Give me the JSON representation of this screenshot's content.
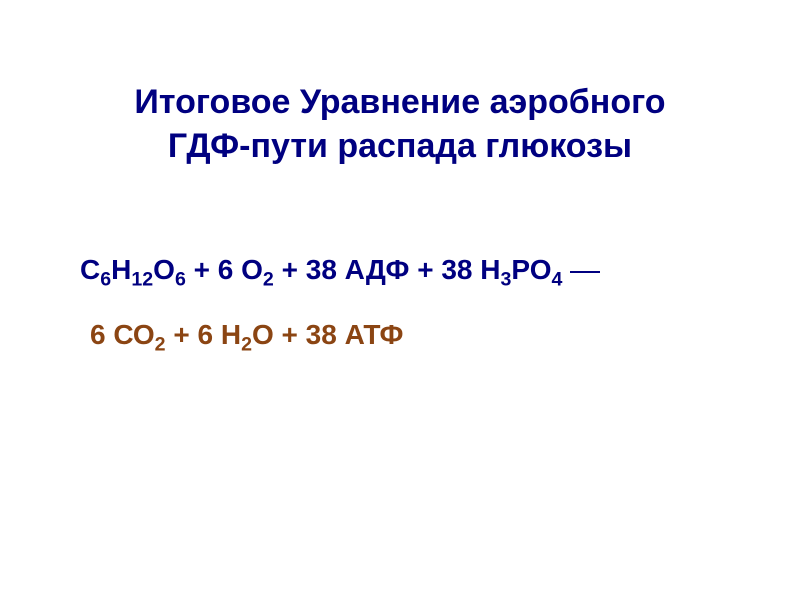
{
  "slide": {
    "title_line1": "Итоговое Уравнение аэробного",
    "title_line2": "ГДФ-пути распада глюкозы",
    "equation": {
      "line1_parts": {
        "reactant1_formula": "С",
        "reactant1_sub1": "6",
        "reactant1_formula2": "Н",
        "reactant1_sub2": "12",
        "reactant1_formula3": "О",
        "reactant1_sub3": "6",
        "plus1": "  +  ",
        "reactant2_coef": "6 О",
        "reactant2_sub": "2",
        "plus2": "  +  ",
        "reactant3": "38 АДФ",
        "plus3": "  +  ",
        "reactant4_coef": "38 Н",
        "reactant4_sub": "3",
        "reactant4_formula": "РО",
        "reactant4_sub2": "4"
      },
      "line2_parts": {
        "product1_coef": "6 СО",
        "product1_sub": "2",
        "plus1": "    +   ",
        "product2_coef": "6 Н",
        "product2_sub": "2",
        "product2_formula": "О",
        "plus2": "   +   ",
        "product3": "38 АТФ"
      }
    },
    "colors": {
      "title_color": "#000080",
      "line1_color": "#000080",
      "line2_color": "#8B4513",
      "background": "#ffffff"
    },
    "typography": {
      "title_fontsize": 34,
      "equation_fontsize": 28,
      "font_weight": "bold",
      "font_family": "Arial"
    }
  }
}
